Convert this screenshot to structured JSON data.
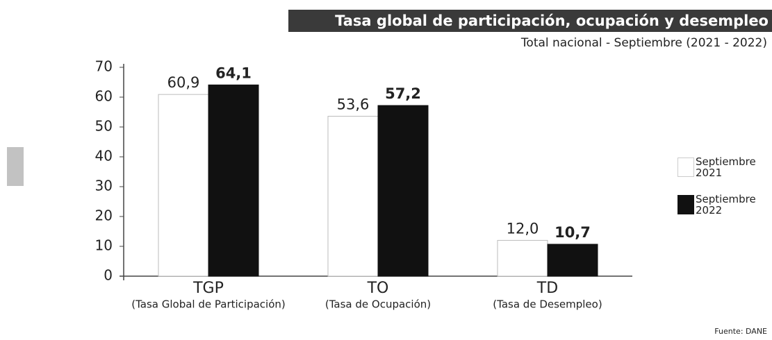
{
  "chart_data": {
    "type": "bar",
    "title": "Tasa global de participación, ocupación y desempleo",
    "subtitle": "Total nacional - Septiembre (2021 - 2022)",
    "categories": [
      "TGP",
      "TO",
      "TD"
    ],
    "category_descriptions": [
      "(Tasa Global de Participación)",
      "(Tasa de Ocupación)",
      "(Tasa de Desempleo)"
    ],
    "series": [
      {
        "name": "Septiembre 2021",
        "color": "#ffffff",
        "values": [
          60.9,
          53.6,
          12.0
        ],
        "value_labels": [
          "60,9",
          "53,6",
          "12,0"
        ]
      },
      {
        "name": "Septiembre 2022",
        "color": "#111111",
        "values": [
          64.1,
          57.2,
          10.7
        ],
        "value_labels": [
          "64,1",
          "57,2",
          "10,7"
        ]
      }
    ],
    "ylim": [
      0,
      70
    ],
    "yticks": [
      0,
      10,
      20,
      30,
      40,
      50,
      60,
      70
    ],
    "legend": "right",
    "source": "Fuente: DANE"
  }
}
